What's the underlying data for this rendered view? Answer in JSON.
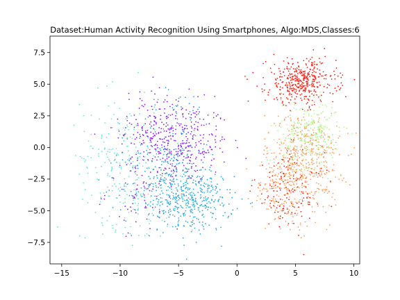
{
  "chart_data": {
    "type": "scatter",
    "title": "Dataset:Human Activity Recognition Using Smartphones, Algo:MDS,Classes:6",
    "xlabel": "",
    "ylabel": "",
    "xlim": [
      -16,
      10.5
    ],
    "ylim": [
      -9.2,
      8.8
    ],
    "xticks": [
      -15,
      -10,
      -5,
      0,
      5,
      10
    ],
    "yticks": [
      -7.5,
      -5.0,
      -2.5,
      0.0,
      2.5,
      5.0,
      7.5
    ],
    "xtick_labels": [
      "−15",
      "−10",
      "−5",
      "0",
      "5",
      "10"
    ],
    "ytick_labels": [
      "−7.5",
      "−5.0",
      "−2.5",
      "0.0",
      "2.5",
      "5.0",
      "7.5"
    ],
    "grid": false,
    "legend": false,
    "series": [
      {
        "color": "#8b1aff",
        "clusters": [
          {
            "cx": -4.5,
            "cy": 0.3,
            "sx": 1.9,
            "sy": 1.6,
            "n": 260
          },
          {
            "cx": -7.0,
            "cy": 1.5,
            "sx": 1.5,
            "sy": 1.6,
            "n": 150
          },
          {
            "cx": -8.0,
            "cy": -3.5,
            "sx": 1.6,
            "sy": 1.4,
            "n": 70
          }
        ]
      },
      {
        "color": "#26a7e6",
        "clusters": [
          {
            "cx": -3.5,
            "cy": -4.2,
            "sx": 1.6,
            "sy": 1.2,
            "n": 300
          },
          {
            "cx": -6.2,
            "cy": -3.0,
            "sx": 1.8,
            "sy": 1.8,
            "n": 260
          },
          {
            "cx": -5.0,
            "cy": 1.0,
            "sx": 1.8,
            "sy": 1.8,
            "n": 80
          }
        ]
      },
      {
        "color": "#66e6d9",
        "clusters": [
          {
            "cx": -10.2,
            "cy": -0.8,
            "sx": 1.6,
            "sy": 2.6,
            "n": 200
          },
          {
            "cx": -7.5,
            "cy": -4.5,
            "sx": 1.6,
            "sy": 1.6,
            "n": 50
          }
        ]
      },
      {
        "color": "#b3f28c",
        "clusters": [
          {
            "cx": 6.4,
            "cy": 1.2,
            "sx": 1.2,
            "sy": 1.2,
            "n": 230
          },
          {
            "cx": 5.2,
            "cy": -0.5,
            "sx": 1.4,
            "sy": 1.6,
            "n": 70
          }
        ]
      },
      {
        "color": "#ff9d5c",
        "clusters": [
          {
            "cx": 5.6,
            "cy": -1.2,
            "sx": 1.6,
            "sy": 2.0,
            "n": 480
          },
          {
            "cx": 4.0,
            "cy": -3.5,
            "sx": 1.3,
            "sy": 1.4,
            "n": 120
          }
        ]
      },
      {
        "color": "#ff1a0d",
        "clusters": [
          {
            "cx": 5.5,
            "cy": 5.2,
            "sx": 1.5,
            "sy": 0.9,
            "n": 400
          },
          {
            "cx": 4.4,
            "cy": -3.5,
            "sx": 1.5,
            "sy": 1.6,
            "n": 130
          }
        ]
      }
    ]
  }
}
